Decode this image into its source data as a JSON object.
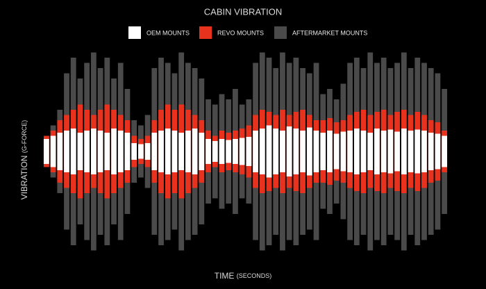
{
  "chart_data": {
    "type": "waveform",
    "title": "CABIN VIBRATION",
    "x_label": "TIME",
    "x_unit": "(SECONDS)",
    "y_label": "VIBRATION",
    "y_unit": "(G-FORCE)",
    "ylim": [
      -1,
      1
    ],
    "series": [
      {
        "name": "AFTERMARKET MOUNTS",
        "color": "#4a4a4a",
        "values": [
          0.15,
          0.25,
          0.4,
          0.75,
          0.9,
          0.7,
          0.85,
          0.95,
          0.8,
          0.9,
          0.7,
          0.85,
          0.6,
          0.3,
          0.25,
          0.35,
          0.8,
          0.9,
          0.85,
          0.75,
          0.95,
          0.85,
          0.8,
          0.7,
          0.5,
          0.45,
          0.55,
          0.5,
          0.6,
          0.45,
          0.5,
          0.85,
          0.95,
          0.9,
          0.8,
          0.95,
          0.85,
          0.9,
          0.8,
          0.75,
          0.85,
          0.55,
          0.6,
          0.5,
          0.65,
          0.85,
          0.9,
          0.8,
          0.95,
          0.85,
          0.9,
          0.8,
          0.85,
          0.95,
          0.8,
          0.9,
          0.85,
          0.8,
          0.75,
          0.6
        ]
      },
      {
        "name": "REVO MOUNTS",
        "color": "#e8321e",
        "values": [
          0.15,
          0.2,
          0.3,
          0.35,
          0.4,
          0.45,
          0.4,
          0.35,
          0.4,
          0.45,
          0.4,
          0.35,
          0.3,
          0.15,
          0.12,
          0.15,
          0.3,
          0.4,
          0.45,
          0.4,
          0.45,
          0.4,
          0.35,
          0.3,
          0.2,
          0.15,
          0.2,
          0.18,
          0.2,
          0.22,
          0.25,
          0.35,
          0.4,
          0.38,
          0.35,
          0.4,
          0.35,
          0.38,
          0.4,
          0.35,
          0.3,
          0.3,
          0.32,
          0.28,
          0.3,
          0.35,
          0.38,
          0.4,
          0.35,
          0.38,
          0.4,
          0.35,
          0.38,
          0.4,
          0.35,
          0.38,
          0.35,
          0.3,
          0.28,
          0.2
        ]
      },
      {
        "name": "OEM MOUNTS",
        "color": "#ffffff",
        "values": [
          0.12,
          0.15,
          0.18,
          0.2,
          0.22,
          0.18,
          0.2,
          0.22,
          0.2,
          0.18,
          0.22,
          0.2,
          0.18,
          0.08,
          0.07,
          0.08,
          0.18,
          0.2,
          0.22,
          0.2,
          0.18,
          0.2,
          0.22,
          0.18,
          0.12,
          0.1,
          0.12,
          0.11,
          0.12,
          0.13,
          0.14,
          0.2,
          0.22,
          0.25,
          0.22,
          0.2,
          0.24,
          0.22,
          0.2,
          0.23,
          0.2,
          0.18,
          0.2,
          0.17,
          0.19,
          0.2,
          0.22,
          0.2,
          0.18,
          0.22,
          0.2,
          0.21,
          0.19,
          0.22,
          0.2,
          0.21,
          0.2,
          0.18,
          0.17,
          0.15
        ]
      }
    ]
  }
}
